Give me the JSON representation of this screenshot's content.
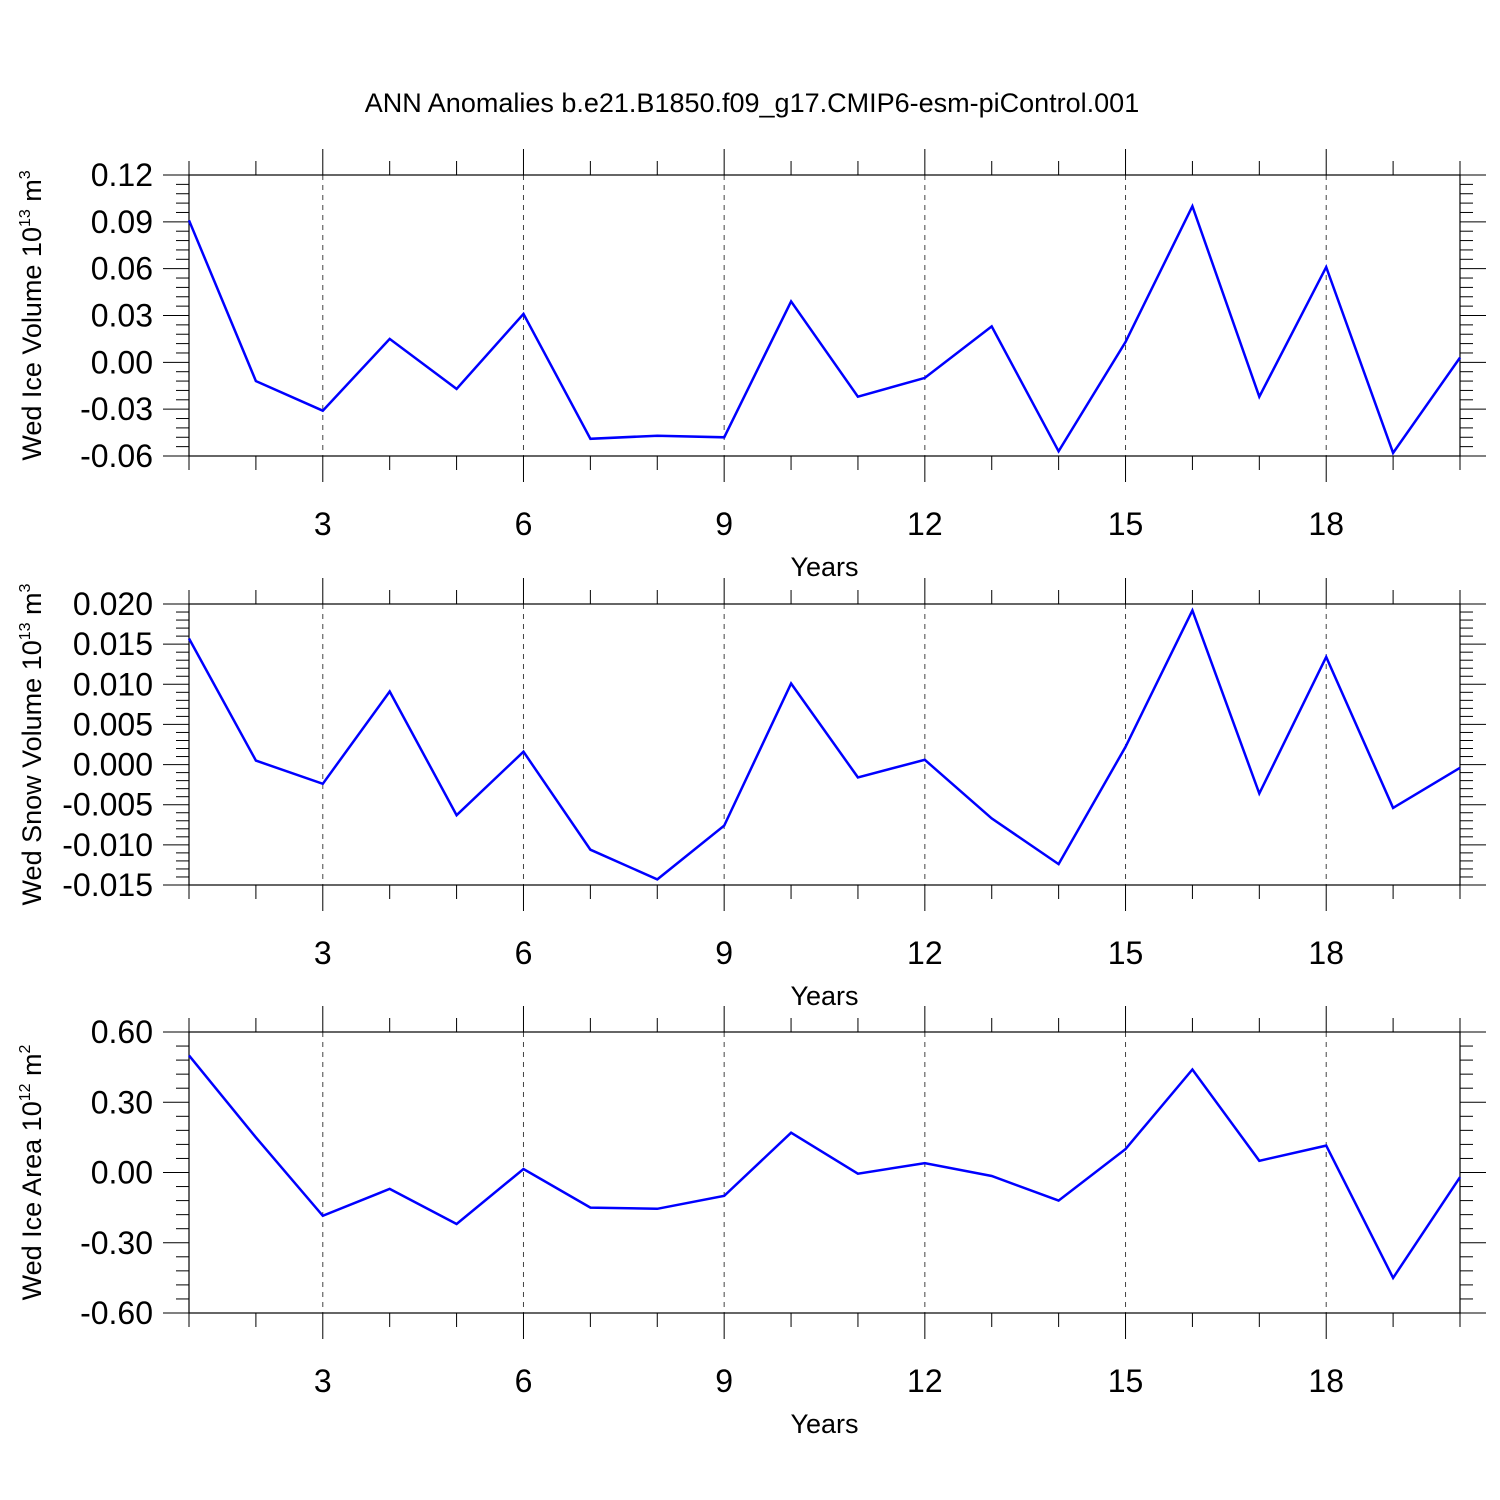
{
  "figure": {
    "title": "ANN Anomalies b.e21.B1850.f09_g17.CMIP6-esm-piControl.001"
  },
  "chart_data": [
    {
      "type": "line",
      "ylabel": "Wed Ice Volume 10",
      "ylabel_exp": "13",
      "ylabel_unit": "m",
      "ylabel_unit_exp": "3",
      "xlabel": "Years",
      "xlim": [
        1,
        20
      ],
      "ylim": [
        -0.06,
        0.12
      ],
      "yticks": [
        -0.06,
        -0.03,
        0.0,
        0.03,
        0.06,
        0.09,
        0.12
      ],
      "ytick_labels": [
        "-0.06",
        "-0.03",
        "0.00",
        "0.03",
        "0.06",
        "0.09",
        "0.12"
      ],
      "xticks": [
        3,
        6,
        9,
        12,
        15,
        18
      ],
      "xtick_labels": [
        "3",
        "6",
        "9",
        "12",
        "15",
        "18"
      ],
      "grid": "vertical dashed at major x ticks",
      "series": [
        {
          "name": "Wed Ice Volume",
          "color": "#0000ff",
          "x": [
            1,
            2,
            3,
            4,
            5,
            6,
            7,
            8,
            9,
            10,
            11,
            12,
            13,
            14,
            15,
            16,
            17,
            18,
            19,
            20
          ],
          "values": [
            0.091,
            -0.012,
            -0.031,
            0.015,
            -0.017,
            0.031,
            -0.049,
            -0.047,
            -0.048,
            0.039,
            -0.022,
            -0.01,
            0.023,
            -0.057,
            0.013,
            0.1,
            -0.022,
            0.061,
            -0.058,
            0.003
          ]
        }
      ]
    },
    {
      "type": "line",
      "ylabel": "Wed Snow Volume 10",
      "ylabel_exp": "13",
      "ylabel_unit": "m",
      "ylabel_unit_exp": "3",
      "xlabel": "Years",
      "xlim": [
        1,
        20
      ],
      "ylim": [
        -0.015,
        0.02
      ],
      "yticks": [
        -0.015,
        -0.01,
        -0.005,
        0.0,
        0.005,
        0.01,
        0.015,
        0.02
      ],
      "ytick_labels": [
        "-0.015",
        "-0.010",
        "-0.005",
        "0.000",
        "0.005",
        "0.010",
        "0.015",
        "0.020"
      ],
      "xticks": [
        3,
        6,
        9,
        12,
        15,
        18
      ],
      "xtick_labels": [
        "3",
        "6",
        "9",
        "12",
        "15",
        "18"
      ],
      "grid": "vertical dashed at major x ticks",
      "series": [
        {
          "name": "Wed Snow Volume",
          "color": "#0000ff",
          "x": [
            1,
            2,
            3,
            4,
            5,
            6,
            7,
            8,
            9,
            10,
            11,
            12,
            13,
            14,
            15,
            16,
            17,
            18,
            19,
            20
          ],
          "values": [
            0.0157,
            0.0005,
            -0.0024,
            0.0091,
            -0.0063,
            0.0016,
            -0.0106,
            -0.0143,
            -0.0076,
            0.0101,
            -0.0016,
            0.0006,
            -0.0067,
            -0.0124,
            0.0022,
            0.0192,
            -0.0036,
            0.0134,
            -0.0054,
            -0.0004
          ]
        }
      ]
    },
    {
      "type": "line",
      "ylabel": "Wed Ice Area 10",
      "ylabel_exp": "12",
      "ylabel_unit": "m",
      "ylabel_unit_exp": "2",
      "xlabel": "Years",
      "xlim": [
        1,
        20
      ],
      "ylim": [
        -0.6,
        0.6
      ],
      "yticks": [
        -0.6,
        -0.3,
        0.0,
        0.3,
        0.6
      ],
      "ytick_labels": [
        "-0.60",
        "-0.30",
        "0.00",
        "0.30",
        "0.60"
      ],
      "xticks": [
        3,
        6,
        9,
        12,
        15,
        18
      ],
      "xtick_labels": [
        "3",
        "6",
        "9",
        "12",
        "15",
        "18"
      ],
      "grid": "vertical dashed at major x ticks",
      "series": [
        {
          "name": "Wed Ice Area",
          "color": "#0000ff",
          "x": [
            1,
            2,
            3,
            4,
            5,
            6,
            7,
            8,
            9,
            10,
            11,
            12,
            13,
            14,
            15,
            16,
            17,
            18,
            19,
            20
          ],
          "values": [
            0.5,
            0.15,
            -0.185,
            -0.07,
            -0.22,
            0.015,
            -0.15,
            -0.155,
            -0.1,
            0.17,
            -0.005,
            0.04,
            -0.015,
            -0.12,
            0.1,
            0.44,
            0.05,
            0.115,
            -0.45,
            -0.02
          ]
        }
      ]
    }
  ]
}
